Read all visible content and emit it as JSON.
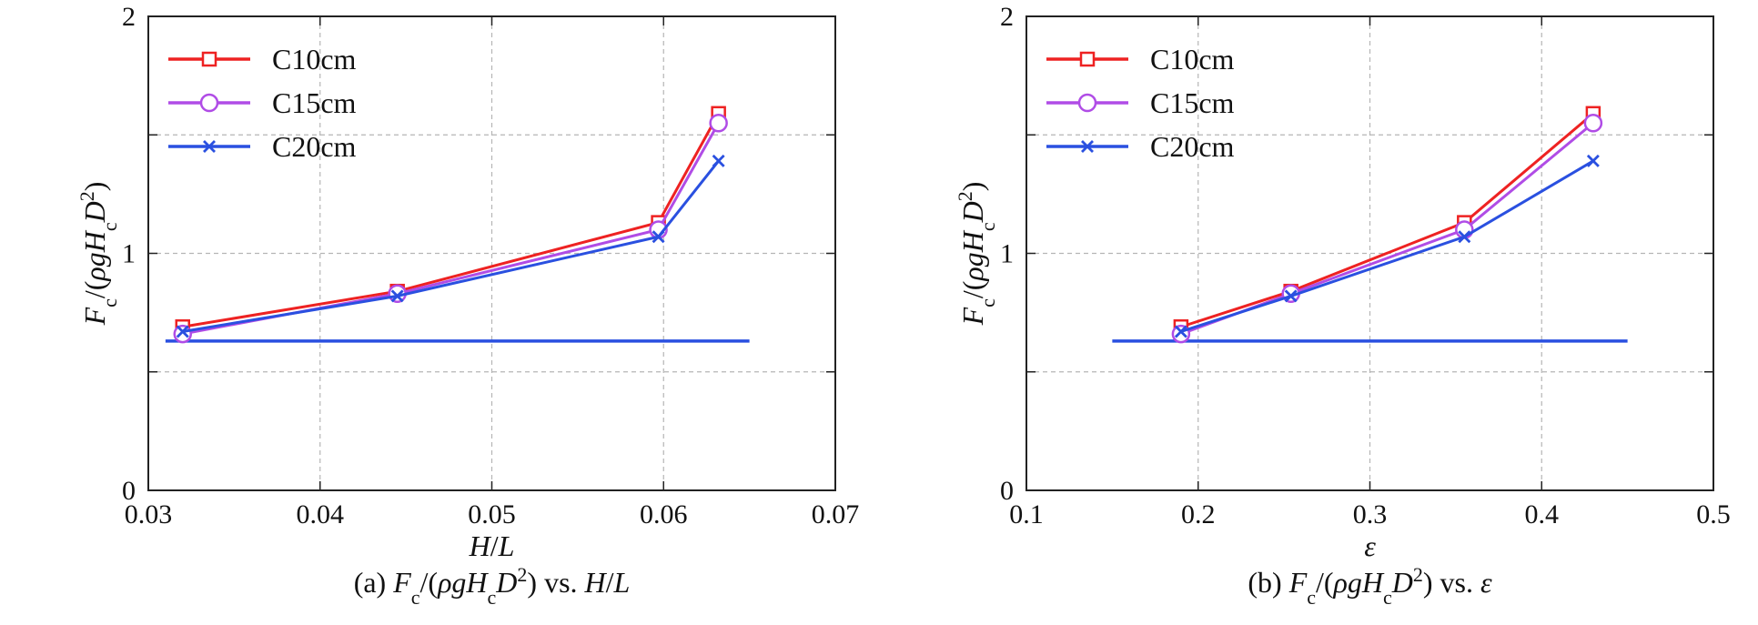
{
  "chart_data": [
    {
      "type": "line",
      "panel": "a",
      "caption_prefix": "(a) ",
      "xlabel": "H/L",
      "ylabel": "F_c/(ρgH_cD^2)",
      "xlim": [
        0.03,
        0.07
      ],
      "ylim": [
        0,
        2
      ],
      "xticks": [
        "0.03",
        "0.04",
        "0.05",
        "0.06",
        "0.07"
      ],
      "yticks": [
        "0",
        "1",
        "2"
      ],
      "grid": true,
      "legend": "top-left",
      "series": [
        {
          "name": "C10cm",
          "color": "#ee2222",
          "marker": "square",
          "x": [
            0.032,
            0.0445,
            0.0597,
            0.0632
          ],
          "y": [
            0.69,
            0.84,
            1.13,
            1.59
          ]
        },
        {
          "name": "C15cm",
          "color": "#b04ce6",
          "marker": "circle",
          "x": [
            0.032,
            0.0445,
            0.0597,
            0.0632
          ],
          "y": [
            0.66,
            0.83,
            1.1,
            1.55
          ]
        },
        {
          "name": "C20cm",
          "color": "#2a50e0",
          "marker": "x",
          "x": [
            0.032,
            0.0445,
            0.0597,
            0.0632
          ],
          "y": [
            0.67,
            0.82,
            1.07,
            1.39
          ]
        }
      ],
      "reference_line": {
        "x": [
          0.031,
          0.065
        ],
        "y": 0.63,
        "color": "#2a50e0"
      }
    },
    {
      "type": "line",
      "panel": "b",
      "caption_prefix": "(b) ",
      "xlabel": "ε",
      "ylabel": "F_c/(ρgH_cD^2)",
      "xlim": [
        0.1,
        0.5
      ],
      "ylim": [
        0,
        2
      ],
      "xticks": [
        "0.1",
        "0.2",
        "0.3",
        "0.4",
        "0.5"
      ],
      "yticks": [
        "0",
        "1",
        "2"
      ],
      "grid": true,
      "legend": "top-left",
      "series": [
        {
          "name": "C10cm",
          "color": "#ee2222",
          "marker": "square",
          "x": [
            0.19,
            0.254,
            0.355,
            0.43
          ],
          "y": [
            0.69,
            0.84,
            1.13,
            1.59
          ]
        },
        {
          "name": "C15cm",
          "color": "#b04ce6",
          "marker": "circle",
          "x": [
            0.19,
            0.254,
            0.355,
            0.43
          ],
          "y": [
            0.66,
            0.83,
            1.1,
            1.55
          ]
        },
        {
          "name": "C20cm",
          "color": "#2a50e0",
          "marker": "x",
          "x": [
            0.19,
            0.254,
            0.355,
            0.43
          ],
          "y": [
            0.67,
            0.82,
            1.07,
            1.39
          ]
        }
      ],
      "reference_line": {
        "x": [
          0.15,
          0.45
        ],
        "y": 0.63,
        "color": "#2a50e0"
      }
    }
  ],
  "captions": {
    "vs_text": " vs. "
  }
}
